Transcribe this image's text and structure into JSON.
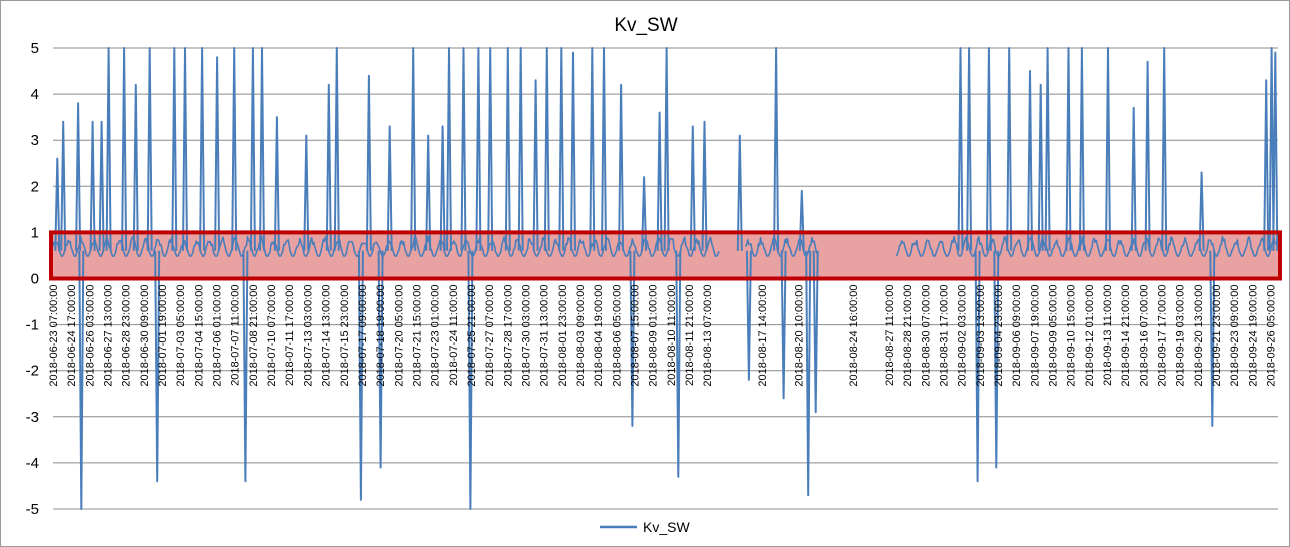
{
  "chart_data": {
    "type": "line",
    "title": "Kv_SW",
    "xlabel": "",
    "ylabel": "",
    "ylim": [
      -5,
      5
    ],
    "yticks": [
      5,
      4,
      3,
      2,
      1,
      0,
      -1,
      -2,
      -3,
      -4,
      -5
    ],
    "xlim": [
      "2018-06-23 07:00:00",
      "2018-09-26 19:00:00"
    ],
    "x_tick_labels": [
      "2018-06-23 07:00:00",
      "2018-06-24 17:00:00",
      "2018-06-26 03:00:00",
      "2018-06-27 13:00:00",
      "2018-06-28 23:00:00",
      "2018-06-30 09:00:00",
      "2018-07-01 19:00:00",
      "2018-07-03 05:00:00",
      "2018-07-04 15:00:00",
      "2018-07-06 01:00:00",
      "2018-07-07 11:00:00",
      "2018-07-08 21:00:00",
      "2018-07-10 07:00:00",
      "2018-07-11 17:00:00",
      "2018-07-13 03:00:00",
      "2018-07-14 13:00:00",
      "2018-07-15 23:00:00",
      "2018-07-17 09:00:00",
      "2018-07-18 19:00:00",
      "2018-07-20 05:00:00",
      "2018-07-21 15:00:00",
      "2018-07-23 01:00:00",
      "2018-07-24 11:00:00",
      "2018-07-25 21:00:00",
      "2018-07-27 07:00:00",
      "2018-07-28 17:00:00",
      "2018-07-30 03:00:00",
      "2018-07-31 13:00:00",
      "2018-08-01 23:00:00",
      "2018-08-03 09:00:00",
      "2018-08-04 19:00:00",
      "2018-08-06 05:00:00",
      "2018-08-07 15:00:00",
      "2018-08-09 01:00:00",
      "2018-08-10 11:00:00",
      "2018-08-11 21:00:00",
      "2018-08-13 07:00:00",
      "2018-08-17 14:00:00",
      "2018-08-20 10:00:00",
      "2018-08-24 16:00:00",
      "2018-08-27 11:00:00",
      "2018-08-28 21:00:00",
      "2018-08-30 07:00:00",
      "2018-08-31 17:00:00",
      "2018-09-02 03:00:00",
      "2018-09-03 13:00:00",
      "2018-09-04 23:00:00",
      "2018-09-06 09:00:00",
      "2018-09-07 19:00:00",
      "2018-09-09 05:00:00",
      "2018-09-10 15:00:00",
      "2018-09-12 01:00:00",
      "2018-09-13 11:00:00",
      "2018-09-14 21:00:00",
      "2018-09-16 07:00:00",
      "2018-09-17 17:00:00",
      "2018-09-19 03:00:00",
      "2018-09-20 13:00:00",
      "2018-09-21 23:00:00",
      "2018-09-23 09:00:00",
      "2018-09-24 19:00:00",
      "2018-09-26 05:00:00"
    ],
    "series": [
      {
        "name": "Kv_SW",
        "color": "#4a7ebb",
        "y_typical_range": [
          0.2,
          1.0
        ],
        "spike_events": [
          {
            "x": "2018-06-23 15:00:00",
            "y": 2.6
          },
          {
            "x": "2018-06-24 02:00:00",
            "y": 3.4
          },
          {
            "x": "2018-06-25 06:00:00",
            "y": 3.8
          },
          {
            "x": "2018-06-25 12:00:00",
            "y": -5
          },
          {
            "x": "2018-06-26 09:00:00",
            "y": 3.4
          },
          {
            "x": "2018-06-27 02:00:00",
            "y": 3.4
          },
          {
            "x": "2018-06-27 15:00:00",
            "y": 5
          },
          {
            "x": "2018-06-28 20:00:00",
            "y": 5
          },
          {
            "x": "2018-06-29 18:00:00",
            "y": 4.2
          },
          {
            "x": "2018-06-30 20:00:00",
            "y": 5
          },
          {
            "x": "2018-07-01 10:00:00",
            "y": -4.4
          },
          {
            "x": "2018-07-02 18:00:00",
            "y": 5
          },
          {
            "x": "2018-07-03 14:00:00",
            "y": 5
          },
          {
            "x": "2018-07-04 22:00:00",
            "y": 5
          },
          {
            "x": "2018-07-06 02:00:00",
            "y": 4.8
          },
          {
            "x": "2018-07-07 10:00:00",
            "y": 5
          },
          {
            "x": "2018-07-08 07:00:00",
            "y": -4.4
          },
          {
            "x": "2018-07-08 21:00:00",
            "y": 5
          },
          {
            "x": "2018-07-09 14:00:00",
            "y": 5
          },
          {
            "x": "2018-07-10 18:00:00",
            "y": 3.5
          },
          {
            "x": "2018-07-13 01:00:00",
            "y": 3.1
          },
          {
            "x": "2018-07-14 19:00:00",
            "y": 4.2
          },
          {
            "x": "2018-07-15 10:00:00",
            "y": 5
          },
          {
            "x": "2018-07-17 07:00:00",
            "y": -4.8
          },
          {
            "x": "2018-07-17 22:00:00",
            "y": 4.4
          },
          {
            "x": "2018-07-18 20:00:00",
            "y": -4.1
          },
          {
            "x": "2018-07-19 13:00:00",
            "y": 3.3
          },
          {
            "x": "2018-07-21 09:00:00",
            "y": 5
          },
          {
            "x": "2018-07-22 13:00:00",
            "y": 3.1
          },
          {
            "x": "2018-07-23 16:00:00",
            "y": 3.3
          },
          {
            "x": "2018-07-24 04:00:00",
            "y": 5
          },
          {
            "x": "2018-07-25 07:00:00",
            "y": 5
          },
          {
            "x": "2018-07-25 20:00:00",
            "y": -5
          },
          {
            "x": "2018-07-26 11:00:00",
            "y": 5
          },
          {
            "x": "2018-07-27 09:00:00",
            "y": 5
          },
          {
            "x": "2018-07-28 18:00:00",
            "y": 5
          },
          {
            "x": "2018-07-29 18:00:00",
            "y": 5
          },
          {
            "x": "2018-07-30 22:00:00",
            "y": 4.3
          },
          {
            "x": "2018-07-31 19:00:00",
            "y": 5
          },
          {
            "x": "2018-08-01 22:00:00",
            "y": 5
          },
          {
            "x": "2018-08-02 20:00:00",
            "y": 4.9
          },
          {
            "x": "2018-08-04 08:00:00",
            "y": 5
          },
          {
            "x": "2018-08-05 06:00:00",
            "y": 5
          },
          {
            "x": "2018-08-06 14:00:00",
            "y": 4.2
          },
          {
            "x": "2018-08-07 11:00:00",
            "y": -3.2
          },
          {
            "x": "2018-08-08 09:00:00",
            "y": 2.2
          },
          {
            "x": "2018-08-09 14:00:00",
            "y": 3.6
          },
          {
            "x": "2018-08-10 03:00:00",
            "y": 5
          },
          {
            "x": "2018-08-11 01:00:00",
            "y": -4.3
          },
          {
            "x": "2018-08-12 04:00:00",
            "y": 3.3
          },
          {
            "x": "2018-08-13 02:00:00",
            "y": 3.4
          },
          {
            "x": "2018-08-15 20:00:00",
            "y": 3.1
          },
          {
            "x": "2018-08-16 13:00:00",
            "y": -2.2
          },
          {
            "x": "2018-08-18 16:00:00",
            "y": 5
          },
          {
            "x": "2018-08-19 06:00:00",
            "y": -2.6
          },
          {
            "x": "2018-08-20 16:00:00",
            "y": 1.9
          },
          {
            "x": "2018-08-21 04:00:00",
            "y": -4.7
          },
          {
            "x": "2018-08-21 18:00:00",
            "y": -2.9
          },
          {
            "x": "2018-09-02 01:00:00",
            "y": 5
          },
          {
            "x": "2018-09-02 17:00:00",
            "y": 5
          },
          {
            "x": "2018-09-03 09:00:00",
            "y": -4.4
          },
          {
            "x": "2018-09-04 06:00:00",
            "y": 5
          },
          {
            "x": "2018-09-04 20:00:00",
            "y": -4.1
          },
          {
            "x": "2018-09-05 20:00:00",
            "y": 5
          },
          {
            "x": "2018-09-07 11:00:00",
            "y": 4.5
          },
          {
            "x": "2018-09-08 07:00:00",
            "y": 4.2
          },
          {
            "x": "2018-09-08 20:00:00",
            "y": 5
          },
          {
            "x": "2018-09-10 11:00:00",
            "y": 5
          },
          {
            "x": "2018-09-11 12:00:00",
            "y": 5
          },
          {
            "x": "2018-09-13 13:00:00",
            "y": 5
          },
          {
            "x": "2018-09-15 13:00:00",
            "y": 3.7
          },
          {
            "x": "2018-09-16 15:00:00",
            "y": 4.7
          },
          {
            "x": "2018-09-17 22:00:00",
            "y": 5
          },
          {
            "x": "2018-09-20 20:00:00",
            "y": 2.3
          },
          {
            "x": "2018-09-21 16:00:00",
            "y": -3.2
          },
          {
            "x": "2018-09-25 21:00:00",
            "y": 4.3
          },
          {
            "x": "2018-09-26 07:00:00",
            "y": 5
          },
          {
            "x": "2018-09-26 14:00:00",
            "y": 4.9
          }
        ]
      }
    ],
    "highlight_band": {
      "y_from": 0,
      "y_to": 1,
      "fill": "#e8a2a2",
      "stroke": "#c00000"
    },
    "grid": true,
    "legend": {
      "position": "bottom",
      "entries": [
        "Kv_SW"
      ]
    }
  }
}
